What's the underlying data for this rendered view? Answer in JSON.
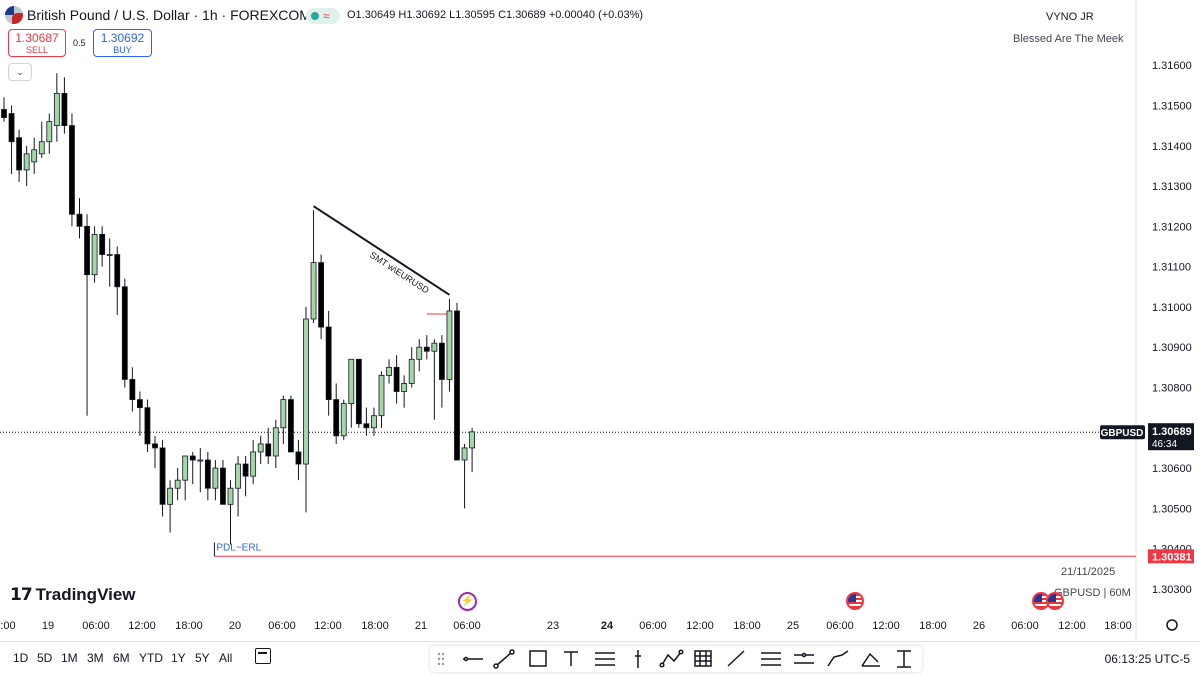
{
  "header": {
    "title": "British Pound / U.S. Dollar · 1h · FOREXCOM",
    "ohlc": "O1.30649  H1.30692  L1.30595  C1.30689  +0.00040 (+0.03%)"
  },
  "trade": {
    "sell_price": "1.30687",
    "sell_label": "SELL",
    "spread": "0.5",
    "buy_price": "1.30692",
    "buy_label": "BUY"
  },
  "author": "VYNO JR",
  "tagline": "Blessed Are The Meek",
  "watermark": {
    "date": "21/11/2025",
    "symbol": "GBPUSD | 60M"
  },
  "logo_text": "TradingView",
  "bottom_bar": {
    "timeframes": [
      "1D",
      "5D",
      "1M",
      "3M",
      "6M",
      "YTD",
      "1Y",
      "5Y",
      "All"
    ],
    "clock": "06:13:25 UTC-5"
  },
  "drawing_tools": [
    "horizontal-line-icon",
    "trend-line-icon",
    "rectangle-icon",
    "text-icon",
    "fib-icon",
    "long-position-icon",
    "pattern-icon",
    "gann-icon",
    "ray-icon",
    "parallel-channel-icon",
    "regression-icon",
    "path-icon",
    "brush-icon",
    "measure-icon"
  ],
  "chart_data": {
    "type": "candlestick",
    "symbol": "GBPUSD",
    "timeframe": "1h",
    "colors": {
      "up": "#a5d6a7",
      "down": "#000000",
      "line": "#f23645"
    },
    "ylim": [
      1.3028,
      1.3166
    ],
    "y_ticks": [
      "1.31600",
      "1.31500",
      "1.31400",
      "1.31300",
      "1.31200",
      "1.31100",
      "1.31000",
      "1.30900",
      "1.30800",
      "1.30700",
      "1.30600",
      "1.30500",
      "1.30400",
      "1.30300"
    ],
    "x_ticks": [
      ":00",
      "19",
      "06:00",
      "12:00",
      "18:00",
      "20",
      "06:00",
      "12:00",
      "18:00",
      "21",
      "06:00",
      "23",
      "24",
      "06:00",
      "12:00",
      "18:00",
      "25",
      "06:00",
      "12:00",
      "18:00",
      "26",
      "06:00",
      "12:00",
      "18:00"
    ],
    "x_tick_bold": [
      "24"
    ],
    "candles": [
      {
        "o": 1.3149,
        "h": 1.3152,
        "l": 1.3146,
        "c": 1.3147
      },
      {
        "o": 1.3148,
        "h": 1.315,
        "l": 1.3133,
        "c": 1.3141
      },
      {
        "o": 1.3142,
        "h": 1.3144,
        "l": 1.3131,
        "c": 1.3134
      },
      {
        "o": 1.3134,
        "h": 1.314,
        "l": 1.313,
        "c": 1.3138
      },
      {
        "o": 1.3136,
        "h": 1.3142,
        "l": 1.3133,
        "c": 1.3139
      },
      {
        "o": 1.3138,
        "h": 1.3146,
        "l": 1.3137,
        "c": 1.3141
      },
      {
        "o": 1.3141,
        "h": 1.3148,
        "l": 1.3138,
        "c": 1.3146
      },
      {
        "o": 1.3145,
        "h": 1.3158,
        "l": 1.3141,
        "c": 1.3153
      },
      {
        "o": 1.3153,
        "h": 1.3157,
        "l": 1.3143,
        "c": 1.3145
      },
      {
        "o": 1.3145,
        "h": 1.3148,
        "l": 1.312,
        "c": 1.3123
      },
      {
        "o": 1.3123,
        "h": 1.3127,
        "l": 1.3117,
        "c": 1.312
      },
      {
        "o": 1.312,
        "h": 1.3123,
        "l": 1.3073,
        "c": 1.3108
      },
      {
        "o": 1.3108,
        "h": 1.312,
        "l": 1.3106,
        "c": 1.3118
      },
      {
        "o": 1.3118,
        "h": 1.312,
        "l": 1.311,
        "c": 1.3113
      },
      {
        "o": 1.3113,
        "h": 1.3117,
        "l": 1.3105,
        "c": 1.3113
      },
      {
        "o": 1.3113,
        "h": 1.3115,
        "l": 1.3098,
        "c": 1.3105
      },
      {
        "o": 1.3105,
        "h": 1.3107,
        "l": 1.308,
        "c": 1.3082
      },
      {
        "o": 1.3082,
        "h": 1.3085,
        "l": 1.3074,
        "c": 1.3077
      },
      {
        "o": 1.3077,
        "h": 1.3079,
        "l": 1.3068,
        "c": 1.3075
      },
      {
        "o": 1.3075,
        "h": 1.3077,
        "l": 1.3064,
        "c": 1.3066
      },
      {
        "o": 1.3066,
        "h": 1.3068,
        "l": 1.306,
        "c": 1.3065
      },
      {
        "o": 1.3065,
        "h": 1.3067,
        "l": 1.3048,
        "c": 1.3051
      },
      {
        "o": 1.3051,
        "h": 1.3057,
        "l": 1.3044,
        "c": 1.3055
      },
      {
        "o": 1.3055,
        "h": 1.306,
        "l": 1.3052,
        "c": 1.3057
      },
      {
        "o": 1.3057,
        "h": 1.3063,
        "l": 1.3052,
        "c": 1.3063
      },
      {
        "o": 1.3063,
        "h": 1.3064,
        "l": 1.3056,
        "c": 1.3062
      },
      {
        "o": 1.3062,
        "h": 1.3065,
        "l": 1.3054,
        "c": 1.3062
      },
      {
        "o": 1.3062,
        "h": 1.3064,
        "l": 1.3052,
        "c": 1.3055
      },
      {
        "o": 1.3055,
        "h": 1.3062,
        "l": 1.3052,
        "c": 1.306
      },
      {
        "o": 1.306,
        "h": 1.3062,
        "l": 1.3051,
        "c": 1.3051
      },
      {
        "o": 1.3051,
        "h": 1.3057,
        "l": 1.3041,
        "c": 1.3055
      },
      {
        "o": 1.3055,
        "h": 1.3063,
        "l": 1.3048,
        "c": 1.3061
      },
      {
        "o": 1.3061,
        "h": 1.3063,
        "l": 1.3053,
        "c": 1.3058
      },
      {
        "o": 1.3058,
        "h": 1.3067,
        "l": 1.3056,
        "c": 1.3064
      },
      {
        "o": 1.3064,
        "h": 1.3068,
        "l": 1.3061,
        "c": 1.3066
      },
      {
        "o": 1.3066,
        "h": 1.307,
        "l": 1.3061,
        "c": 1.3063
      },
      {
        "o": 1.3063,
        "h": 1.3072,
        "l": 1.306,
        "c": 1.307
      },
      {
        "o": 1.307,
        "h": 1.3078,
        "l": 1.3066,
        "c": 1.3077
      },
      {
        "o": 1.3077,
        "h": 1.3078,
        "l": 1.3064,
        "c": 1.3064
      },
      {
        "o": 1.3064,
        "h": 1.3067,
        "l": 1.3057,
        "c": 1.3061
      },
      {
        "o": 1.3061,
        "h": 1.31,
        "l": 1.3049,
        "c": 1.3097
      },
      {
        "o": 1.3097,
        "h": 1.3124,
        "l": 1.3096,
        "c": 1.3111
      },
      {
        "o": 1.3111,
        "h": 1.3113,
        "l": 1.3092,
        "c": 1.3095
      },
      {
        "o": 1.3095,
        "h": 1.3099,
        "l": 1.3073,
        "c": 1.3077
      },
      {
        "o": 1.3077,
        "h": 1.3081,
        "l": 1.3066,
        "c": 1.3068
      },
      {
        "o": 1.3068,
        "h": 1.3077,
        "l": 1.3067,
        "c": 1.3076
      },
      {
        "o": 1.3076,
        "h": 1.3087,
        "l": 1.307,
        "c": 1.3087
      },
      {
        "o": 1.3087,
        "h": 1.3087,
        "l": 1.307,
        "c": 1.3071
      },
      {
        "o": 1.3071,
        "h": 1.3075,
        "l": 1.3068,
        "c": 1.307
      },
      {
        "o": 1.307,
        "h": 1.3075,
        "l": 1.3068,
        "c": 1.3073
      },
      {
        "o": 1.3073,
        "h": 1.3084,
        "l": 1.307,
        "c": 1.3083
      },
      {
        "o": 1.3083,
        "h": 1.3087,
        "l": 1.3081,
        "c": 1.3085
      },
      {
        "o": 1.3085,
        "h": 1.3088,
        "l": 1.3076,
        "c": 1.3079
      },
      {
        "o": 1.3079,
        "h": 1.3083,
        "l": 1.3075,
        "c": 1.3081
      },
      {
        "o": 1.3081,
        "h": 1.309,
        "l": 1.308,
        "c": 1.3087
      },
      {
        "o": 1.3087,
        "h": 1.3092,
        "l": 1.3084,
        "c": 1.309
      },
      {
        "o": 1.309,
        "h": 1.3093,
        "l": 1.3087,
        "c": 1.3089
      },
      {
        "o": 1.3089,
        "h": 1.3092,
        "l": 1.3072,
        "c": 1.3091
      },
      {
        "o": 1.3091,
        "h": 1.3093,
        "l": 1.3075,
        "c": 1.3082
      },
      {
        "o": 1.3082,
        "h": 1.3102,
        "l": 1.3079,
        "c": 1.3099
      },
      {
        "o": 1.3099,
        "h": 1.3101,
        "l": 1.3063,
        "c": 1.3062
      },
      {
        "o": 1.3062,
        "h": 1.3066,
        "l": 1.305,
        "c": 1.3065
      },
      {
        "o": 1.3065,
        "h": 1.307,
        "l": 1.3059,
        "c": 1.3069
      }
    ],
    "last_price": {
      "symbol": "GBPUSD",
      "price": "1.30689",
      "countdown": "46:34",
      "value": 1.30689
    },
    "line_marker": {
      "price": "1.30381",
      "value": 1.30381
    },
    "annotations": [
      {
        "text": "SMT w\\EURUSD",
        "from": {
          "candle": 41,
          "price": 1.3125
        },
        "to": {
          "candle": 59,
          "price": 1.3103
        }
      },
      {
        "text": "PDL~ERL",
        "price": 1.30381,
        "from_candle": 28
      }
    ],
    "short_line": {
      "price": 1.3099,
      "from_candle": 56,
      "to_candle": 59
    }
  }
}
